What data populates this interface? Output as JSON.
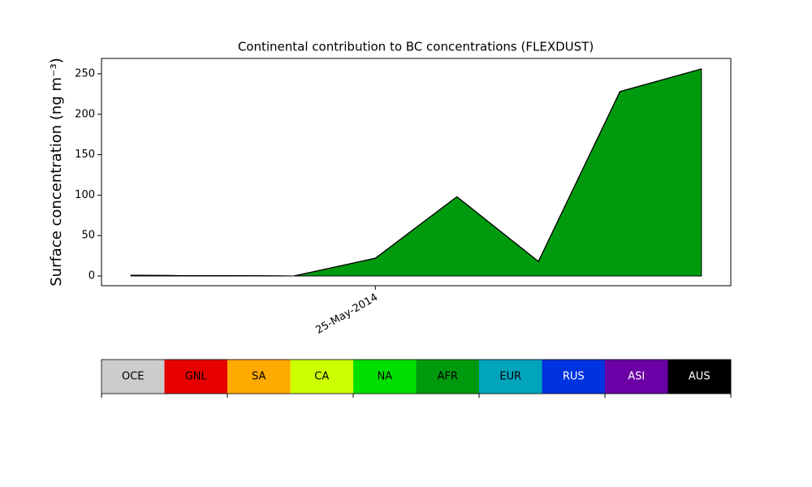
{
  "chart_data": {
    "type": "area",
    "stacked": true,
    "title": "Continental contribution to BC concentrations (FLEXDUST)",
    "y_label": "Surface concentration (ng m⁻³)",
    "categories": [
      null,
      null,
      null,
      "25-May-2014",
      null,
      null,
      null,
      null
    ],
    "ylim": [
      -12,
      269
    ],
    "yticks": [
      0,
      50,
      100,
      150,
      200,
      250
    ],
    "series": [
      {
        "name": "OCE",
        "color": "#cccccc",
        "values": [
          0,
          0,
          0,
          0,
          0,
          0,
          0,
          0
        ]
      },
      {
        "name": "GNL",
        "color": "#e60000",
        "values": [
          0,
          0,
          0,
          0,
          0,
          0,
          0,
          0
        ]
      },
      {
        "name": "SA",
        "color": "#ffaa00",
        "values": [
          0,
          0,
          0,
          0,
          0,
          0,
          0,
          0
        ]
      },
      {
        "name": "CA",
        "color": "#ccff00",
        "values": [
          0,
          0,
          0,
          0,
          0,
          0,
          0,
          0
        ]
      },
      {
        "name": "NA",
        "color": "#00e000",
        "values": [
          0,
          0,
          0,
          0,
          0,
          0,
          0,
          0
        ]
      },
      {
        "name": "AFR",
        "color": "#009a0f",
        "values": [
          0.8,
          0.4,
          0,
          22,
          98,
          18,
          228,
          256
        ]
      },
      {
        "name": "EUR",
        "color": "#00a5bc",
        "values": [
          0,
          0,
          0,
          0,
          0,
          0,
          0,
          0
        ]
      },
      {
        "name": "RUS",
        "color": "#0033e0",
        "values": [
          0,
          0,
          0,
          0,
          0,
          0,
          0,
          0
        ]
      },
      {
        "name": "ASI",
        "color": "#6a00a5",
        "values": [
          0,
          0,
          0,
          0,
          0,
          0,
          0,
          0
        ]
      },
      {
        "name": "AUS",
        "color": "#000000",
        "values": [
          0,
          0,
          0,
          0,
          0,
          0,
          0,
          0
        ]
      }
    ]
  }
}
